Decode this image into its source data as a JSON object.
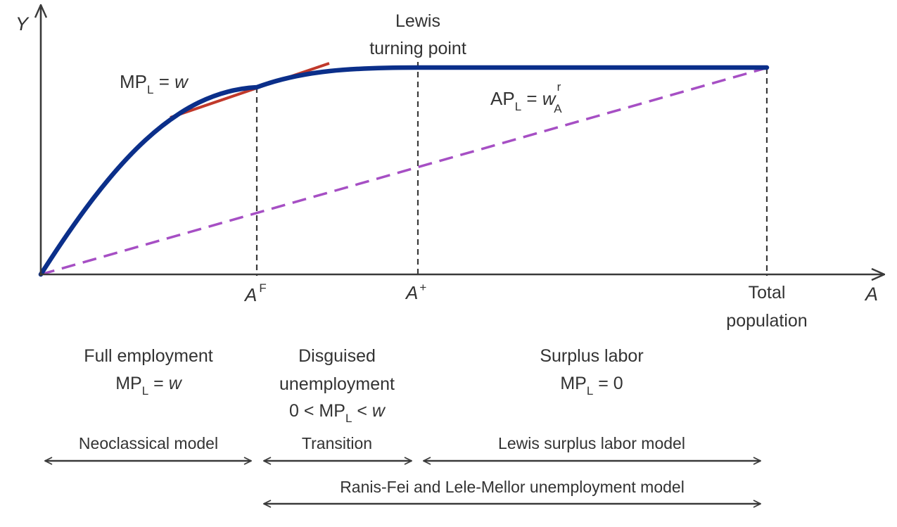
{
  "colors": {
    "curve": "#0b2f8a",
    "tangent": "#c0392b",
    "average_line": "#a64fc4",
    "axis": "#3a3a3a",
    "guide": "#3a3a3a",
    "text": "#333333"
  },
  "axes": {
    "y_label": "Y",
    "x_label": "A"
  },
  "annotations": {
    "lewis_line1": "Lewis",
    "lewis_line2": "turning point",
    "mpl_base": "MP",
    "mpl_sub": "L",
    "mpl_eq": " = ",
    "mpl_w": "w",
    "apl_base": "AP",
    "apl_sub": "L",
    "apl_eq": " = ",
    "apl_w": "w",
    "apl_w_sup": "r",
    "apl_w_sub": "A"
  },
  "ticks": {
    "af_base": "A",
    "af_sup": "F",
    "aplus_base": "A",
    "aplus_sup": "+",
    "total_line1": "Total",
    "total_line2": "population"
  },
  "regimes": {
    "full": {
      "title": "Full employment",
      "mp": "MP",
      "mp_sub": "L",
      "eq": " = ",
      "w": "w"
    },
    "disguised": {
      "title_line1": "Disguised",
      "title_line2": "unemployment",
      "prefix": "0 < MP",
      "mp_sub": "L",
      "lt": " < ",
      "w": "w"
    },
    "surplus": {
      "title": "Surplus labor",
      "mp": "MP",
      "mp_sub": "L",
      "eq": " = 0"
    }
  },
  "models": {
    "neoclassical": "Neoclassical model",
    "transition": "Transition",
    "lewis": "Lewis surplus labor model",
    "ranis": "Ranis-Fei and Lele-Mellor unemployment model"
  }
}
